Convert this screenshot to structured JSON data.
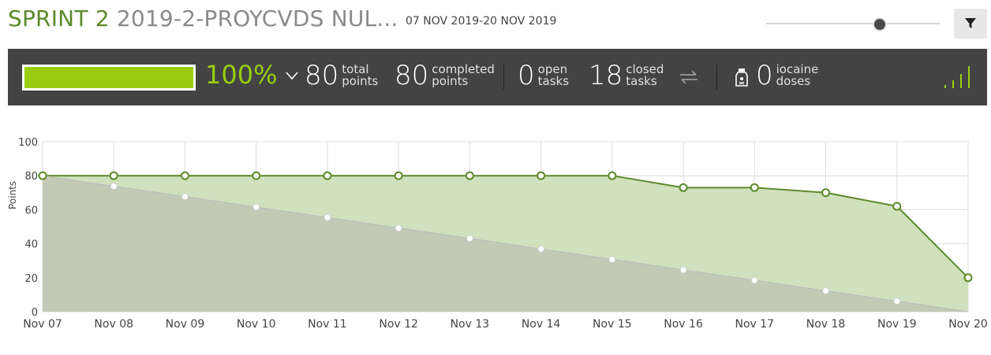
{
  "header": {
    "sprint_name": "SPRINT 2",
    "project_name": "2019-2-PROYCVDS NUL...",
    "dates": "07 NOV 2019-20 NOV 2019",
    "filter_icon": "filter-icon"
  },
  "stats": {
    "progress_fraction": 1.0,
    "progress_text": "100%",
    "total_points": "80",
    "total_points_label": [
      "total",
      "points"
    ],
    "completed_points": "80",
    "completed_points_label": [
      "completed",
      "points"
    ],
    "open_tasks": "0",
    "open_tasks_label": [
      "open",
      "tasks"
    ],
    "closed_tasks": "18",
    "closed_tasks_label": [
      "closed",
      "tasks"
    ],
    "iocaine_doses": "0",
    "iocaine_label": [
      "iocaine",
      "doses"
    ],
    "colors": {
      "bar_bg": "#434343",
      "accent": "#9acd0f"
    }
  },
  "chart_data": {
    "type": "area",
    "ylabel": "Points",
    "ylim": [
      0,
      100
    ],
    "yticks": [
      0,
      20,
      40,
      60,
      80,
      100
    ],
    "categories": [
      "Nov 07",
      "Nov 08",
      "Nov 09",
      "Nov 10",
      "Nov 11",
      "Nov 12",
      "Nov 13",
      "Nov 14",
      "Nov 15",
      "Nov 16",
      "Nov 17",
      "Nov 18",
      "Nov 19",
      "Nov 20"
    ],
    "series": [
      {
        "values": [
          80,
          80,
          80,
          80,
          80,
          80,
          80,
          80,
          80,
          73,
          73,
          70,
          62,
          20
        ],
        "color": "#5b8a2a",
        "fill": "#d0e1be"
      },
      {
        "values": [
          80,
          73.8,
          67.7,
          61.5,
          55.4,
          49.2,
          43.1,
          36.9,
          30.8,
          24.6,
          18.5,
          12.3,
          6.2,
          0
        ],
        "color": "#bcbcbc",
        "fill": "#c0c8b4"
      }
    ],
    "grid": true
  }
}
